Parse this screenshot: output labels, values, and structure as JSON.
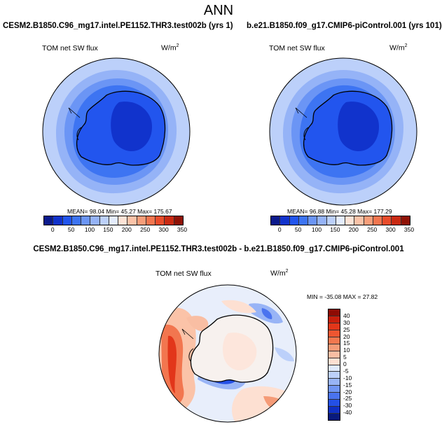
{
  "title": "ANN",
  "panels": [
    {
      "case": "CESM2.B1850.C96_mg17.intel.PE1152.THR3.test002b (yrs 1)",
      "label": "TOM net SW flux",
      "units": "W/m",
      "units_sup": "2",
      "stats": "MEAN=  98.04  Min=  45.27  Max= 175.67"
    },
    {
      "case": "b.e21.B1850.f09_g17.CMIP6-piControl.001 (yrs 101)",
      "label": "TOM net SW flux",
      "units": "W/m",
      "units_sup": "2",
      "stats": "MEAN=  96.88  Min=  45.28  Max= 177.29"
    }
  ],
  "diff": {
    "case": "CESM2.B1850.C96_mg17.intel.PE1152.THR3.test002b - b.e21.B1850.f09_g17.CMIP6-piControl.001",
    "label": "TOM net SW flux",
    "units": "W/m",
    "units_sup": "2",
    "stats": "MIN = -35.08  MAX =  27.82"
  },
  "colorbar_abs": {
    "ticks": [
      "0",
      "50",
      "100",
      "150",
      "200",
      "250",
      "300",
      "350"
    ],
    "colors": [
      "#0b1a8c",
      "#1133cc",
      "#2255ee",
      "#3d74f2",
      "#6b95f5",
      "#95b3f7",
      "#bcd0fa",
      "#e4ecfd",
      "#fde3d6",
      "#fbc3a8",
      "#f79e7a",
      "#f2764f",
      "#e84c2b",
      "#c92a12",
      "#8f1206"
    ]
  },
  "colorbar_diff": {
    "ticks": [
      "40",
      "30",
      "25",
      "20",
      "15",
      "10",
      "5",
      "0",
      "-5",
      "-10",
      "-15",
      "-20",
      "-25",
      "-30",
      "-40"
    ],
    "colors": [
      "#8e0b04",
      "#c71f0c",
      "#e2361a",
      "#ee5631",
      "#f2784f",
      "#f59b77",
      "#f9bea3",
      "#fde0d2",
      "#e0eafd",
      "#bcd0fa",
      "#98b4f6",
      "#7095f3",
      "#4a73ef",
      "#2450e6",
      "#1030c4",
      "#081a7d"
    ]
  }
}
